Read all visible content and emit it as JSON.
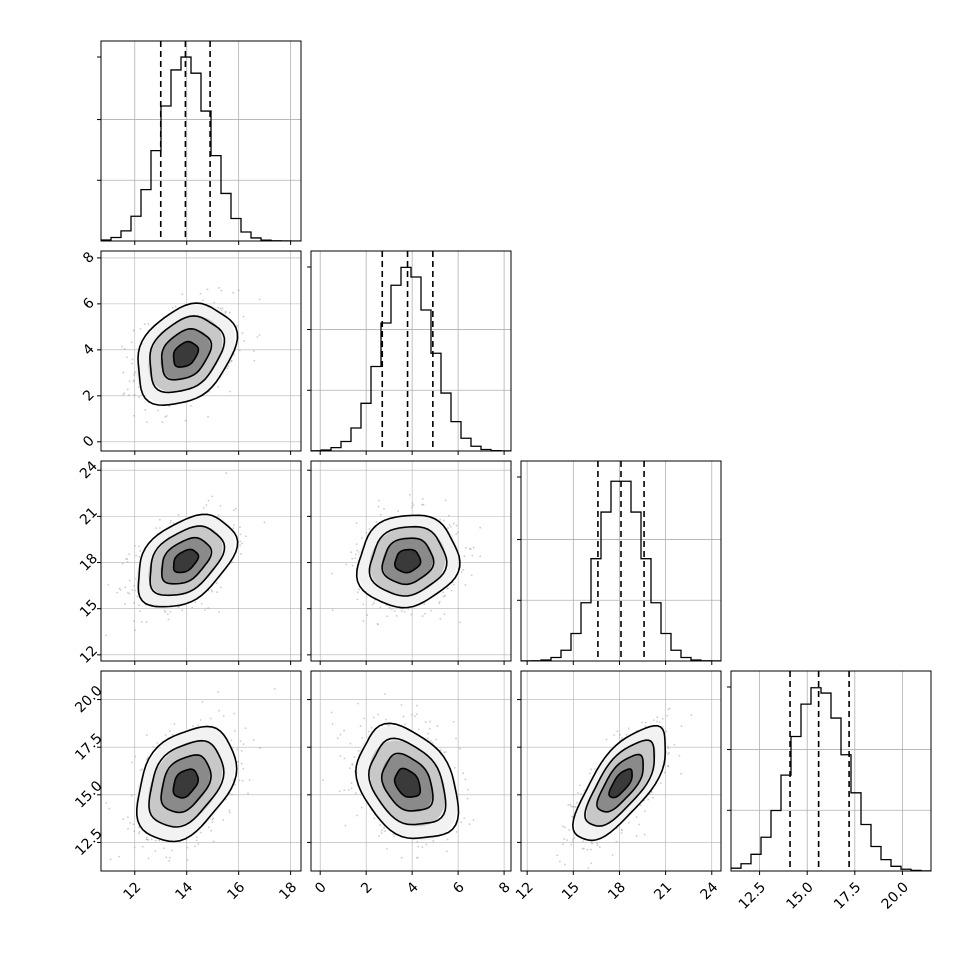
{
  "chart_data": {
    "type": "corner",
    "params": [
      {
        "mean": 13.95,
        "sd": 0.95,
        "range": [
          10.7,
          18.4
        ],
        "hist_ymax": 1.0,
        "quantiles": [
          13.0,
          13.95,
          14.9
        ],
        "tick_values": [
          12,
          14,
          16,
          18
        ],
        "tick_labels": [
          "12",
          "14",
          "16",
          "18"
        ]
      },
      {
        "mean": 3.8,
        "sd": 1.1,
        "range": [
          -0.4,
          8.3
        ],
        "hist_ymax": 1.0,
        "quantiles": [
          2.7,
          3.8,
          4.9
        ],
        "tick_values": [
          0,
          2,
          4,
          6,
          8
        ],
        "tick_labels": [
          "0",
          "2",
          "4",
          "6",
          "8"
        ]
      },
      {
        "mean": 18.1,
        "sd": 1.5,
        "range": [
          11.6,
          24.6
        ],
        "hist_ymax": 1.0,
        "quantiles": [
          16.6,
          18.1,
          19.6
        ],
        "tick_values": [
          12,
          15,
          18,
          21,
          24
        ],
        "tick_labels": [
          "12",
          "15",
          "18",
          "21",
          "24"
        ]
      },
      {
        "mean": 15.6,
        "sd": 1.5,
        "range": [
          11.0,
          21.5
        ],
        "hist_ymax": 1.0,
        "quantiles": [
          14.1,
          15.6,
          17.2
        ],
        "tick_values": [
          12.5,
          15.0,
          17.5,
          20.0
        ],
        "tick_labels": [
          "12.5",
          "15.0",
          "17.5",
          "20.0"
        ]
      }
    ],
    "correlations": [
      [
        1.0,
        0.3,
        0.4,
        0.35
      ],
      [
        0.3,
        1.0,
        0.1,
        -0.3
      ],
      [
        0.4,
        0.1,
        1.0,
        0.7
      ],
      [
        0.35,
        -0.3,
        0.7,
        1.0
      ]
    ],
    "contour_levels_sigma": [
      0.5,
      1.0,
      1.5,
      2.0
    ],
    "quantile_probabilities": [
      0.16,
      0.5,
      0.84
    ],
    "grid": true,
    "colors": {
      "hist": "#000000",
      "quantile": "#000000",
      "contour": "#000000",
      "points": "#9a9a9a",
      "grid": "#b0b0b0",
      "density_shades": [
        "#f2f2f2",
        "#c8c8c8",
        "#8a8a8a",
        "#3a3a3a"
      ]
    }
  }
}
